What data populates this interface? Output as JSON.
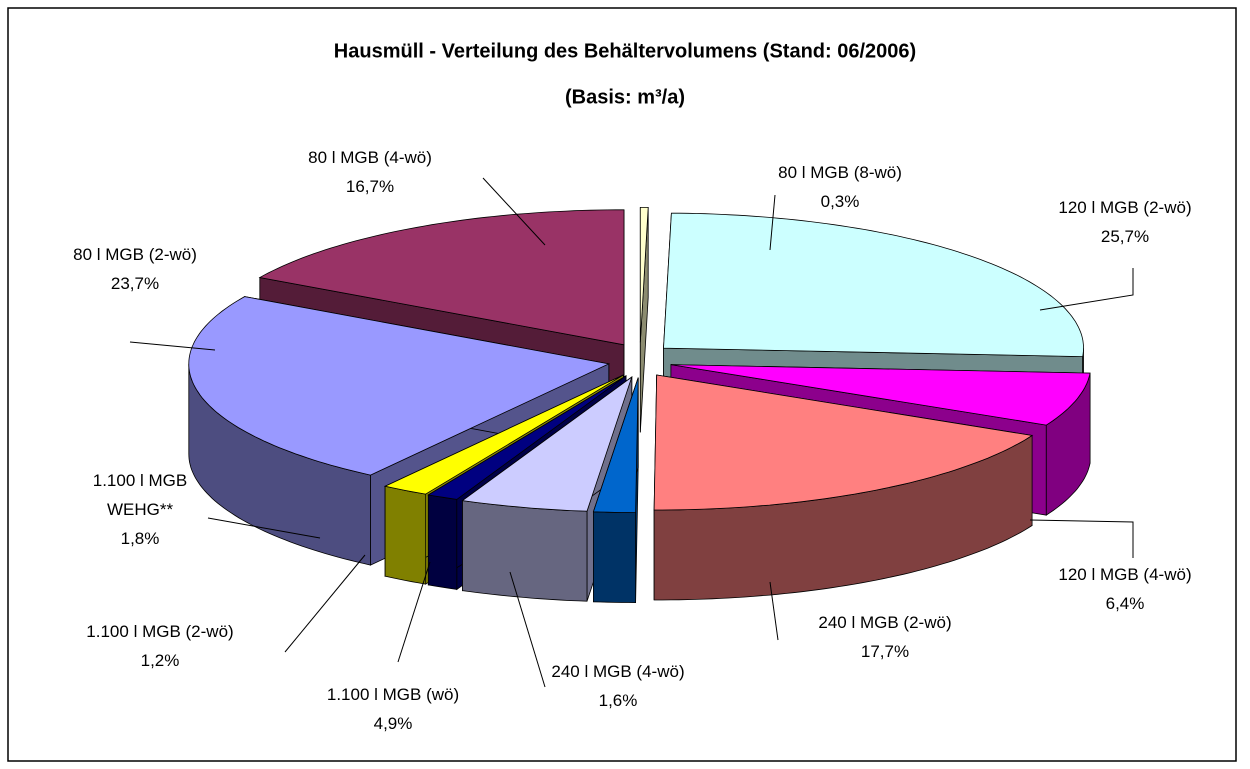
{
  "chart_data": {
    "type": "pie3d",
    "title": "Hausmüll - Verteilung des Behältervolumens (Stand: 06/2006)",
    "subtitle": "(Basis: m³/a)",
    "categories": [
      "80 l MGB (8-wö)",
      "120 l MGB (2-wö)",
      "120 l MGB (4-wö)",
      "240 l MGB (2-wö)",
      "240 l MGB (4-wö)",
      "1.100 l MGB (wö)",
      "1.100 l MGB (2-wö)",
      "1.100 l MGB WEHG**",
      "80 l MGB (2-wö)",
      "80 l MGB (4-wö)"
    ],
    "values": [
      0.3,
      25.7,
      6.4,
      17.7,
      1.6,
      4.9,
      1.2,
      1.8,
      23.7,
      16.7
    ],
    "value_labels": [
      "0,3%",
      "25,7%",
      "6,4%",
      "17,7%",
      "1,6%",
      "4,9%",
      "1,2%",
      "1,8%",
      "23,7%",
      "16,7%"
    ],
    "colors": [
      "#ffffcc",
      "#ccffff",
      "#ff00ff",
      "#ff8080",
      "#0066cc",
      "#ccccff",
      "#000080",
      "#ffff00",
      "#9999ff",
      "#993366"
    ]
  }
}
